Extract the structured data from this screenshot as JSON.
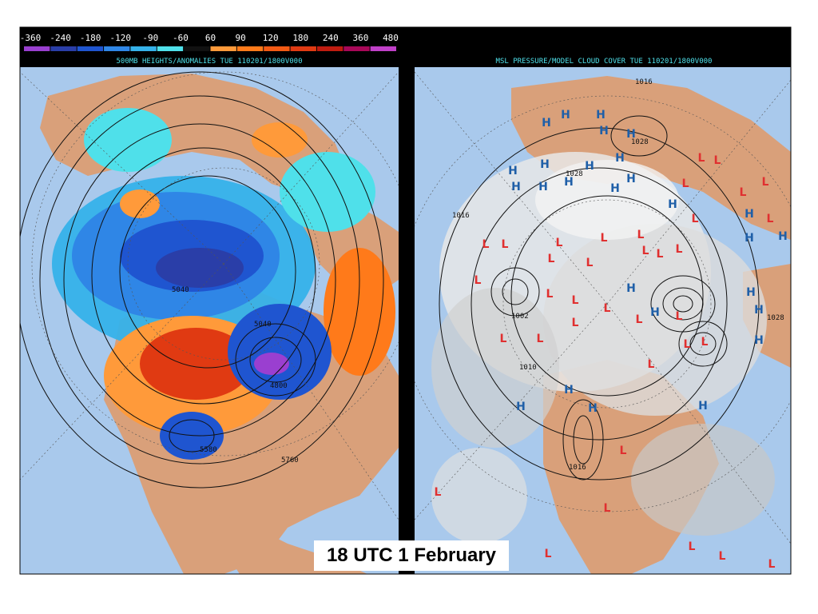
{
  "left_panel": {
    "title": "500MB HEIGHTS/ANOMALIES TUE 110201/1800V000",
    "colorbar": {
      "tick_labels": [
        "-360",
        "-240",
        "-180",
        "-120",
        "-90",
        "-60",
        "60",
        "90",
        "120",
        "180",
        "240",
        "360",
        "480"
      ],
      "colors": [
        "#9a3fd0",
        "#2a3ea8",
        "#1f55d0",
        "#2f86e6",
        "#35b2ea",
        "#4fe0ea",
        "#111111",
        "#ff9a3a",
        "#ff7a1a",
        "#f25a14",
        "#e03a12",
        "#c01c10",
        "#a80858",
        "#c040c8"
      ]
    },
    "contour_labels": [
      "5040",
      "5040",
      "5580",
      "5760",
      "4800"
    ]
  },
  "right_panel": {
    "title": "MSL PRESSURE/MODEL CLOUD COVER TUE 110201/1800V000",
    "isobar_labels": [
      "1016",
      "1016",
      "1028",
      "1028",
      "1002",
      "1010",
      "1016",
      "1028"
    ],
    "high_label": "H",
    "low_label": "L"
  },
  "colors": {
    "ocean": "#a9c9ec",
    "land": "#d9a07a",
    "frame": "#000000",
    "title_text": "#4fe0ea",
    "high_marker": "#1f5fa8",
    "low_marker": "#e03030"
  },
  "caption": "18 UTC 1 February"
}
